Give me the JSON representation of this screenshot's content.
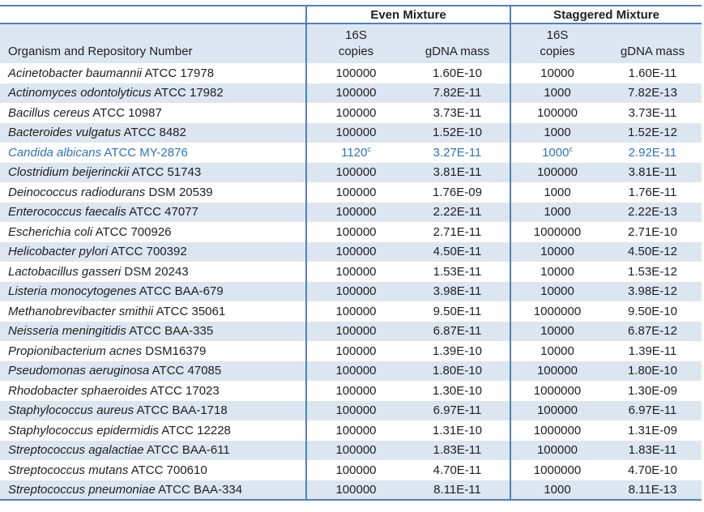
{
  "colors": {
    "border": "#4f81bd",
    "stripe": "#dce6f1",
    "highlight_text": "#2e74b5",
    "text": "#1f1f1f"
  },
  "table": {
    "group_headers": [
      "Even Mixture",
      "Staggered Mixture"
    ],
    "organism_header": "Organism and Repository Number",
    "copies_header_line1": "16S",
    "copies_header_line2": "copies",
    "even_mass_header": "gDNA mass",
    "stag_copies_header_line1": "16S",
    "stag_copies_header_line2": "copies",
    "stag_mass_header": "gDNA mass",
    "rows": [
      {
        "organism": "Acinetobacter baumannii",
        "repo": "ATCC 17978",
        "even_copies": "100000",
        "even_mass": "1.60E-10",
        "stag_copies": "10000",
        "stag_mass": "1.60E-11"
      },
      {
        "organism": "Actinomyces odontolyticus",
        "repo": "ATCC 17982",
        "even_copies": "100000",
        "even_mass": "7.82E-11",
        "stag_copies": "1000",
        "stag_mass": "7.82E-13"
      },
      {
        "organism": "Bacillus cereus",
        "repo": "ATCC 10987",
        "even_copies": "100000",
        "even_mass": "3.73E-11",
        "stag_copies": "100000",
        "stag_mass": "3.73E-11"
      },
      {
        "organism": "Bacteroides vulgatus",
        "repo": "ATCC 8482",
        "even_copies": "100000",
        "even_mass": "1.52E-10",
        "stag_copies": "1000",
        "stag_mass": "1.52E-12"
      },
      {
        "organism": "Candida albicans",
        "repo": "ATCC MY-2876",
        "even_copies": "1120",
        "even_copies_sup": "c",
        "even_mass": "3.27E-11",
        "stag_copies": "1000",
        "stag_copies_sup": "c",
        "stag_mass": "2.92E-11",
        "highlighted": true
      },
      {
        "organism": "Clostridium beijerinckii",
        "repo": "ATCC 51743",
        "even_copies": "100000",
        "even_mass": "3.81E-11",
        "stag_copies": "100000",
        "stag_mass": "3.81E-11"
      },
      {
        "organism": "Deinococcus radiodurans",
        "repo": "DSM 20539",
        "even_copies": "100000",
        "even_mass": "1.76E-09",
        "stag_copies": "1000",
        "stag_mass": "1.76E-11"
      },
      {
        "organism": "Enterococcus faecalis",
        "repo": "ATCC 47077",
        "even_copies": "100000",
        "even_mass": "2.22E-11",
        "stag_copies": "1000",
        "stag_mass": "2.22E-13"
      },
      {
        "organism": "Escherichia coli",
        "repo": "ATCC 700926",
        "even_copies": "100000",
        "even_mass": "2.71E-11",
        "stag_copies": "1000000",
        "stag_mass": "2.71E-10"
      },
      {
        "organism": "Helicobacter pylori",
        "repo": "ATCC 700392",
        "even_copies": "100000",
        "even_mass": "4.50E-11",
        "stag_copies": "10000",
        "stag_mass": "4.50E-12"
      },
      {
        "organism": "Lactobacillus gasseri",
        "repo": "DSM 20243",
        "even_copies": "100000",
        "even_mass": "1.53E-11",
        "stag_copies": "10000",
        "stag_mass": "1.53E-12"
      },
      {
        "organism": "Listeria monocytogenes",
        "repo": "ATCC BAA-679",
        "even_copies": "100000",
        "even_mass": "3.98E-11",
        "stag_copies": "10000",
        "stag_mass": "3.98E-12"
      },
      {
        "organism": "Methanobrevibacter smithii",
        "repo": "ATCC 35061",
        "even_copies": "100000",
        "even_mass": "9.50E-11",
        "stag_copies": "1000000",
        "stag_mass": "9.50E-10"
      },
      {
        "organism": "Neisseria meningitidis",
        "repo": "ATCC BAA-335",
        "even_copies": "100000",
        "even_mass": "6.87E-11",
        "stag_copies": "10000",
        "stag_mass": "6.87E-12"
      },
      {
        "organism": "Propionibacterium acnes",
        "repo": "DSM16379",
        "even_copies": "100000",
        "even_mass": "1.39E-10",
        "stag_copies": "10000",
        "stag_mass": "1.39E-11"
      },
      {
        "organism": "Pseudomonas aeruginosa",
        "repo": "ATCC 47085",
        "even_copies": "100000",
        "even_mass": "1.80E-10",
        "stag_copies": "100000",
        "stag_mass": "1.80E-10"
      },
      {
        "organism": "Rhodobacter sphaeroides",
        "repo": "ATCC 17023",
        "even_copies": "100000",
        "even_mass": "1.30E-10",
        "stag_copies": "1000000",
        "stag_mass": "1.30E-09"
      },
      {
        "organism": "Staphylococcus aureus",
        "repo": "ATCC BAA-1718",
        "even_copies": "100000",
        "even_mass": "6.97E-11",
        "stag_copies": "100000",
        "stag_mass": "6.97E-11"
      },
      {
        "organism": "Staphylococcus epidermidis",
        "repo": "ATCC 12228",
        "even_copies": "100000",
        "even_mass": "1.31E-10",
        "stag_copies": "1000000",
        "stag_mass": "1.31E-09"
      },
      {
        "organism": "Streptococcus agalactiae",
        "repo": "ATCC BAA-611",
        "even_copies": "100000",
        "even_mass": "1.83E-11",
        "stag_copies": "100000",
        "stag_mass": "1.83E-11"
      },
      {
        "organism": "Streptococcus mutans",
        "repo": "ATCC 700610",
        "even_copies": "100000",
        "even_mass": "4.70E-11",
        "stag_copies": "1000000",
        "stag_mass": "4.70E-10"
      },
      {
        "organism": "Streptococcus pneumoniae",
        "repo": "ATCC BAA-334",
        "even_copies": "100000",
        "even_mass": "8.11E-11",
        "stag_copies": "1000",
        "stag_mass": "8.11E-13"
      }
    ]
  }
}
